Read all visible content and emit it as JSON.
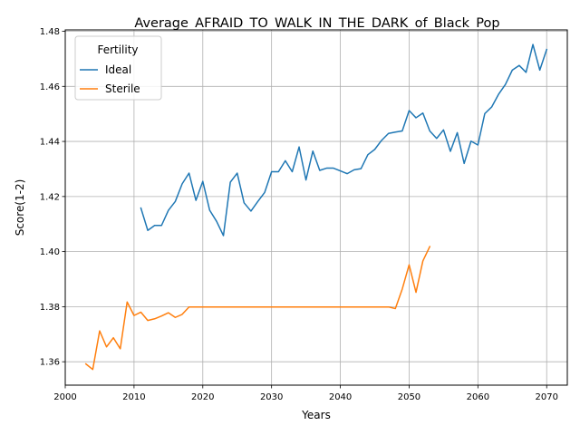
{
  "chart_data": {
    "type": "line",
    "title": "Average_AFRAID_TO_WALK_IN_THE_DARK_of_Black_Pop",
    "xlabel": "Years",
    "ylabel": "Score(1-2)",
    "xlim": [
      2000,
      2073
    ],
    "ylim": [
      1.3515,
      1.4805
    ],
    "x_ticks": [
      2000,
      2010,
      2020,
      2030,
      2040,
      2050,
      2060,
      2070
    ],
    "y_ticks": [
      1.36,
      1.38,
      1.4,
      1.42,
      1.44,
      1.46,
      1.48
    ],
    "grid": true,
    "legend": {
      "title": "Fertility",
      "placement": "top-left"
    },
    "series": [
      {
        "name": "Ideal",
        "color": "#1f77b4",
        "x": [
          2011,
          2012,
          2013,
          2014,
          2015,
          2016,
          2017,
          2018,
          2019,
          2020,
          2021,
          2022,
          2023,
          2024,
          2025,
          2026,
          2027,
          2028,
          2029,
          2030,
          2031,
          2032,
          2033,
          2034,
          2035,
          2036,
          2037,
          2038,
          2039,
          2040,
          2041,
          2042,
          2043,
          2044,
          2045,
          2046,
          2047,
          2048,
          2049,
          2050,
          2051,
          2052,
          2053,
          2054,
          2055,
          2056,
          2057,
          2058,
          2059,
          2060,
          2061,
          2062,
          2063,
          2064,
          2065,
          2066,
          2067,
          2068,
          2069,
          2070
        ],
        "y": [
          1.4158,
          1.4077,
          1.4095,
          1.4095,
          1.415,
          1.4182,
          1.4246,
          1.4285,
          1.4186,
          1.4255,
          1.415,
          1.411,
          1.4058,
          1.4252,
          1.4285,
          1.4177,
          1.4147,
          1.4182,
          1.4215,
          1.429,
          1.429,
          1.433,
          1.429,
          1.438,
          1.426,
          1.4365,
          1.4295,
          1.4303,
          1.4303,
          1.4293,
          1.4283,
          1.4297,
          1.4301,
          1.4352,
          1.4371,
          1.4404,
          1.4429,
          1.4434,
          1.4438,
          1.4512,
          1.4486,
          1.4503,
          1.4438,
          1.4411,
          1.4442,
          1.4364,
          1.4432,
          1.432,
          1.4401,
          1.4387,
          1.4501,
          1.4525,
          1.4571,
          1.4607,
          1.4659,
          1.4676,
          1.4651,
          1.4752,
          1.4659,
          1.4734
        ]
      },
      {
        "name": "Sterile",
        "color": "#ff7f0e",
        "x": [
          2003,
          2004,
          2005,
          2006,
          2007,
          2008,
          2009,
          2010,
          2011,
          2012,
          2013,
          2014,
          2015,
          2016,
          2017,
          2018,
          2019,
          2020,
          2021,
          2022,
          2023,
          2024,
          2025,
          2026,
          2027,
          2028,
          2029,
          2030,
          2031,
          2032,
          2033,
          2034,
          2035,
          2036,
          2037,
          2038,
          2039,
          2040,
          2041,
          2042,
          2043,
          2044,
          2045,
          2046,
          2047,
          2048,
          2049,
          2050,
          2051,
          2052,
          2053
        ],
        "y": [
          1.3592,
          1.3572,
          1.3712,
          1.3654,
          1.3687,
          1.3647,
          1.3817,
          1.3768,
          1.378,
          1.375,
          1.3756,
          1.3766,
          1.3778,
          1.3761,
          1.3772,
          1.3799,
          1.3799,
          1.3799,
          1.3799,
          1.3799,
          1.3799,
          1.3799,
          1.3799,
          1.3799,
          1.3799,
          1.3799,
          1.3799,
          1.3799,
          1.3799,
          1.3799,
          1.3799,
          1.3799,
          1.3799,
          1.3799,
          1.3799,
          1.3799,
          1.3799,
          1.3799,
          1.3799,
          1.3799,
          1.3799,
          1.3799,
          1.3799,
          1.3799,
          1.3799,
          1.3793,
          1.3864,
          1.3952,
          1.3852,
          1.3966,
          1.4018
        ]
      }
    ]
  }
}
